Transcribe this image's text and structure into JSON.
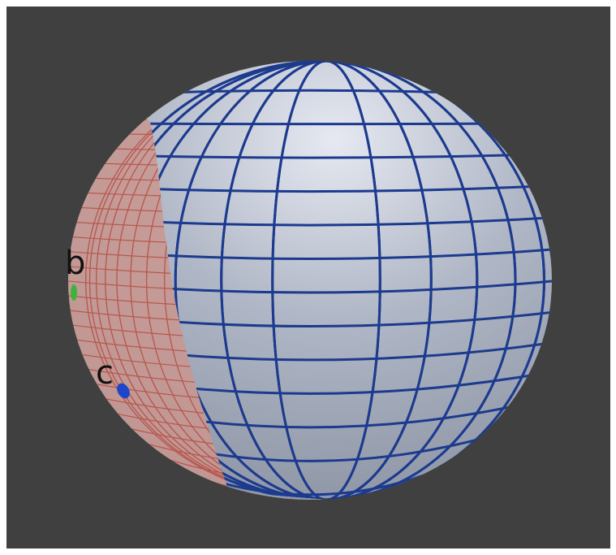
{
  "points": [
    {
      "label": "b",
      "color": "#3cb43c"
    },
    {
      "label": "c",
      "color": "#1e46c8"
    }
  ]
}
